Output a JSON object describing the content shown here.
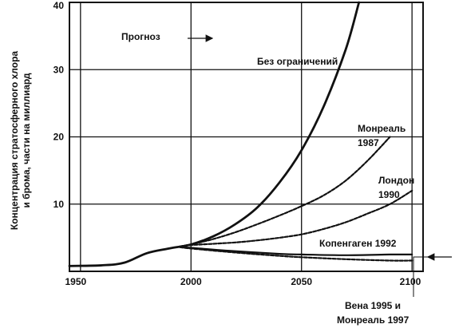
{
  "chart_data": {
    "type": "line",
    "ylabel_line1": "Концентрация стратосферного хлора",
    "ylabel_line2": "и брома, части на миллиард",
    "xlim": [
      1945,
      2105
    ],
    "ylim": [
      0,
      40
    ],
    "x_ticks": [
      "1950",
      "2000",
      "2050",
      "2100"
    ],
    "y_ticks": [
      "10",
      "20",
      "30",
      "40"
    ],
    "grid": true,
    "forecast_label": "Прогноз",
    "series": [
      {
        "name": "Без ограничений",
        "style": "solid",
        "x": [
          1945,
          1960,
          1970,
          1980,
          1990,
          2000,
          2010,
          2020,
          2030,
          2040,
          2050,
          2060,
          2070,
          2076
        ],
        "y": [
          0.8,
          0.9,
          1.3,
          2.7,
          3.4,
          4.0,
          5.2,
          7.0,
          9.5,
          13.2,
          18.0,
          24.5,
          33.0,
          40.0
        ]
      },
      {
        "name": "Монреаль 1987",
        "label_lines": [
          "Монреаль",
          "1987"
        ],
        "style": "dashed",
        "x": [
          1995,
          2000,
          2010,
          2020,
          2030,
          2040,
          2050,
          2060,
          2070,
          2080,
          2090
        ],
        "y": [
          3.7,
          4.0,
          4.8,
          5.8,
          7.0,
          8.3,
          9.7,
          11.3,
          13.5,
          16.5,
          20.0
        ]
      },
      {
        "name": "Лондон 1990",
        "label_lines": [
          "Лондон",
          "1990"
        ],
        "style": "dashed",
        "x": [
          1995,
          2000,
          2010,
          2020,
          2030,
          2040,
          2050,
          2060,
          2070,
          2080,
          2090,
          2100
        ],
        "y": [
          3.7,
          3.9,
          4.1,
          4.3,
          4.6,
          5.0,
          5.5,
          6.3,
          7.3,
          8.6,
          10.0,
          12.0
        ]
      },
      {
        "name": "Копенгаген 1992",
        "style": "solid",
        "x": [
          1995,
          2000,
          2020,
          2040,
          2050,
          2070,
          2090,
          2100
        ],
        "y": [
          3.6,
          3.5,
          3.0,
          2.6,
          2.5,
          2.4,
          2.5,
          2.5
        ]
      },
      {
        "name": "Вена 1995 и Монреаль 1997",
        "label_lines": [
          "Вена 1995 и",
          "Монреаль 1997"
        ],
        "style": "dashed",
        "x": [
          1995,
          2000,
          2020,
          2040,
          2050,
          2070,
          2090,
          2100
        ],
        "y": [
          3.6,
          3.4,
          2.8,
          2.3,
          2.1,
          1.8,
          1.6,
          1.6
        ]
      }
    ]
  }
}
